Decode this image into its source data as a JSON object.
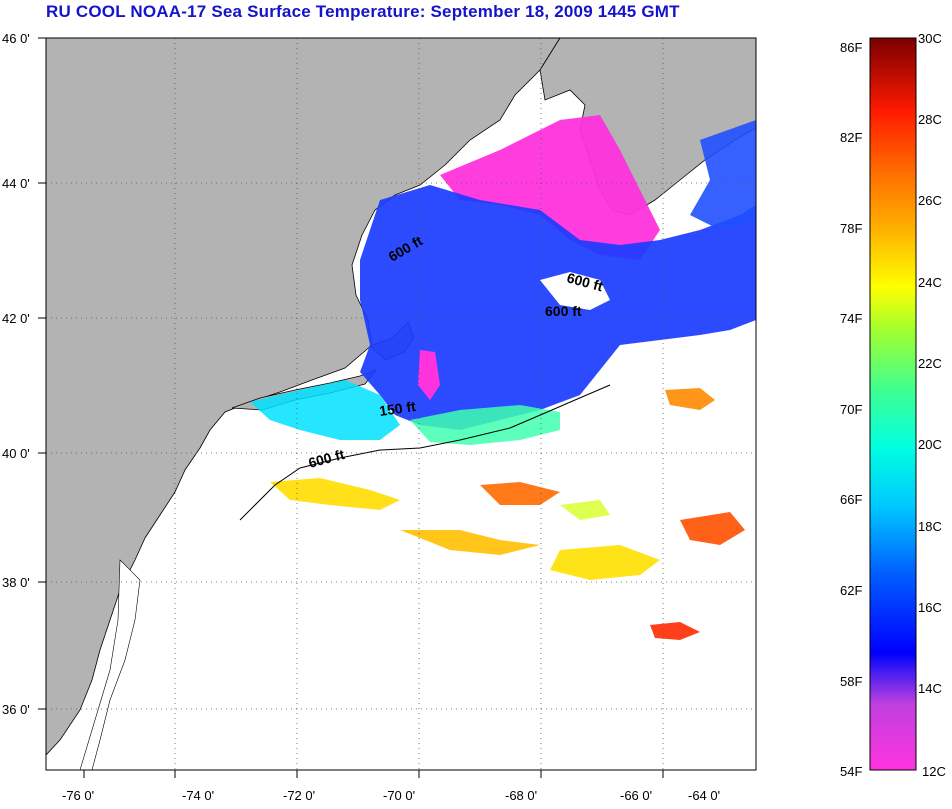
{
  "title": "RU COOL  NOAA-17  Sea Surface Temperature:  September 18, 2009 1445 GMT",
  "colors": {
    "land": "#b3b3b3",
    "ocean": "#ffffff",
    "title": "#1414c8"
  },
  "map": {
    "lon_range": [
      -77,
      -63
    ],
    "lat_range": [
      35,
      46
    ],
    "lon_ticks": [
      "-76 0'",
      "-74 0'",
      "-72 0'",
      "-70 0'",
      "-68 0'",
      "-66 0'",
      "-64 0'"
    ],
    "lat_ticks": [
      "46 0'",
      "44 0'",
      "42 0'",
      "40 0'",
      "38 0'",
      "36 0'"
    ],
    "grid": "dotted",
    "contour_labels": [
      "600 ft",
      "600 ft",
      "600 ft",
      "150 ft",
      "600 ft"
    ]
  },
  "colorbar": {
    "fahrenheit": [
      "86F",
      "82F",
      "78F",
      "74F",
      "70F",
      "66F",
      "62F",
      "58F",
      "54F"
    ],
    "celsius": [
      "30C",
      "28C",
      "26C",
      "24C",
      "22C",
      "20C",
      "18C",
      "16C",
      "14C",
      "12C"
    ],
    "range_c": [
      12,
      30
    ]
  }
}
